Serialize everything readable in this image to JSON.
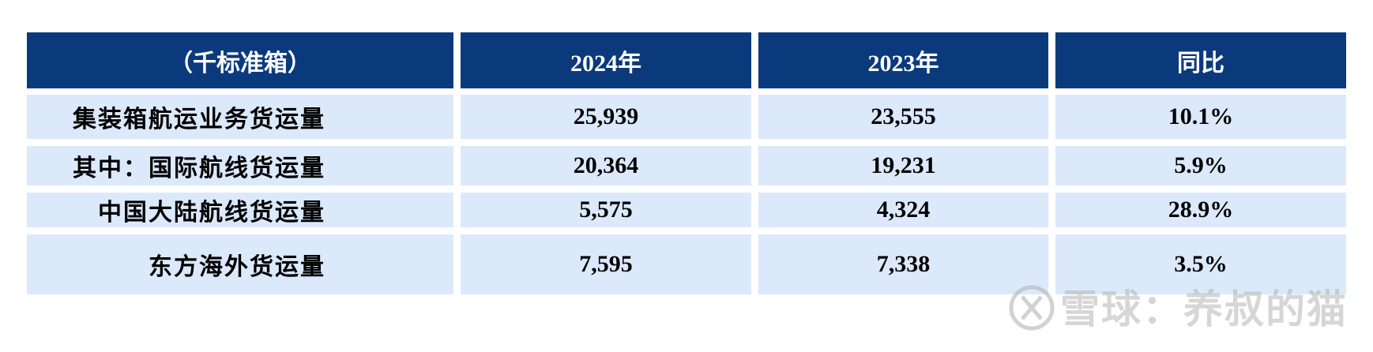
{
  "table": {
    "header": [
      "（千标准箱）",
      "2024年",
      "2023年",
      "同比"
    ],
    "rows": [
      [
        "集装箱航运业务货运量",
        "25,939",
        "23,555",
        "10.1%"
      ],
      [
        "其中：国际航线货运量",
        "20,364",
        "19,231",
        "5.9%"
      ],
      [
        "中国大陆航线货运量",
        "5,575",
        "4,324",
        "28.9%"
      ],
      [
        "东方海外货运量",
        "7,595",
        "7,338",
        "3.5%"
      ]
    ]
  },
  "watermark": "雪球：养叔的猫"
}
